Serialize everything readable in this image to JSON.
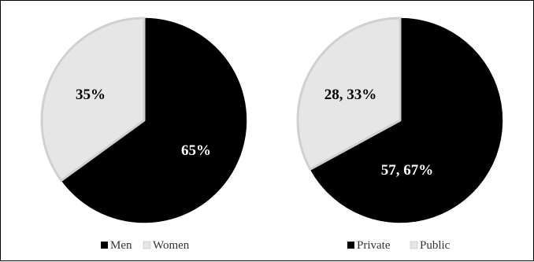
{
  "chart_data": [
    {
      "type": "pie",
      "title": "",
      "labels": [
        "Men",
        "Women"
      ],
      "values": [
        65,
        35
      ],
      "data_labels": [
        "65%",
        "35%"
      ],
      "colors": [
        "#000000",
        "#e6e6e6"
      ],
      "legend_position": "bottom"
    },
    {
      "type": "pie",
      "title": "",
      "labels": [
        "Private",
        "Public"
      ],
      "values": [
        57,
        28
      ],
      "percents": [
        67,
        33
      ],
      "data_labels": [
        "57, 67%",
        "28, 33%"
      ],
      "colors": [
        "#000000",
        "#e6e6e6"
      ],
      "legend_position": "bottom"
    }
  ]
}
